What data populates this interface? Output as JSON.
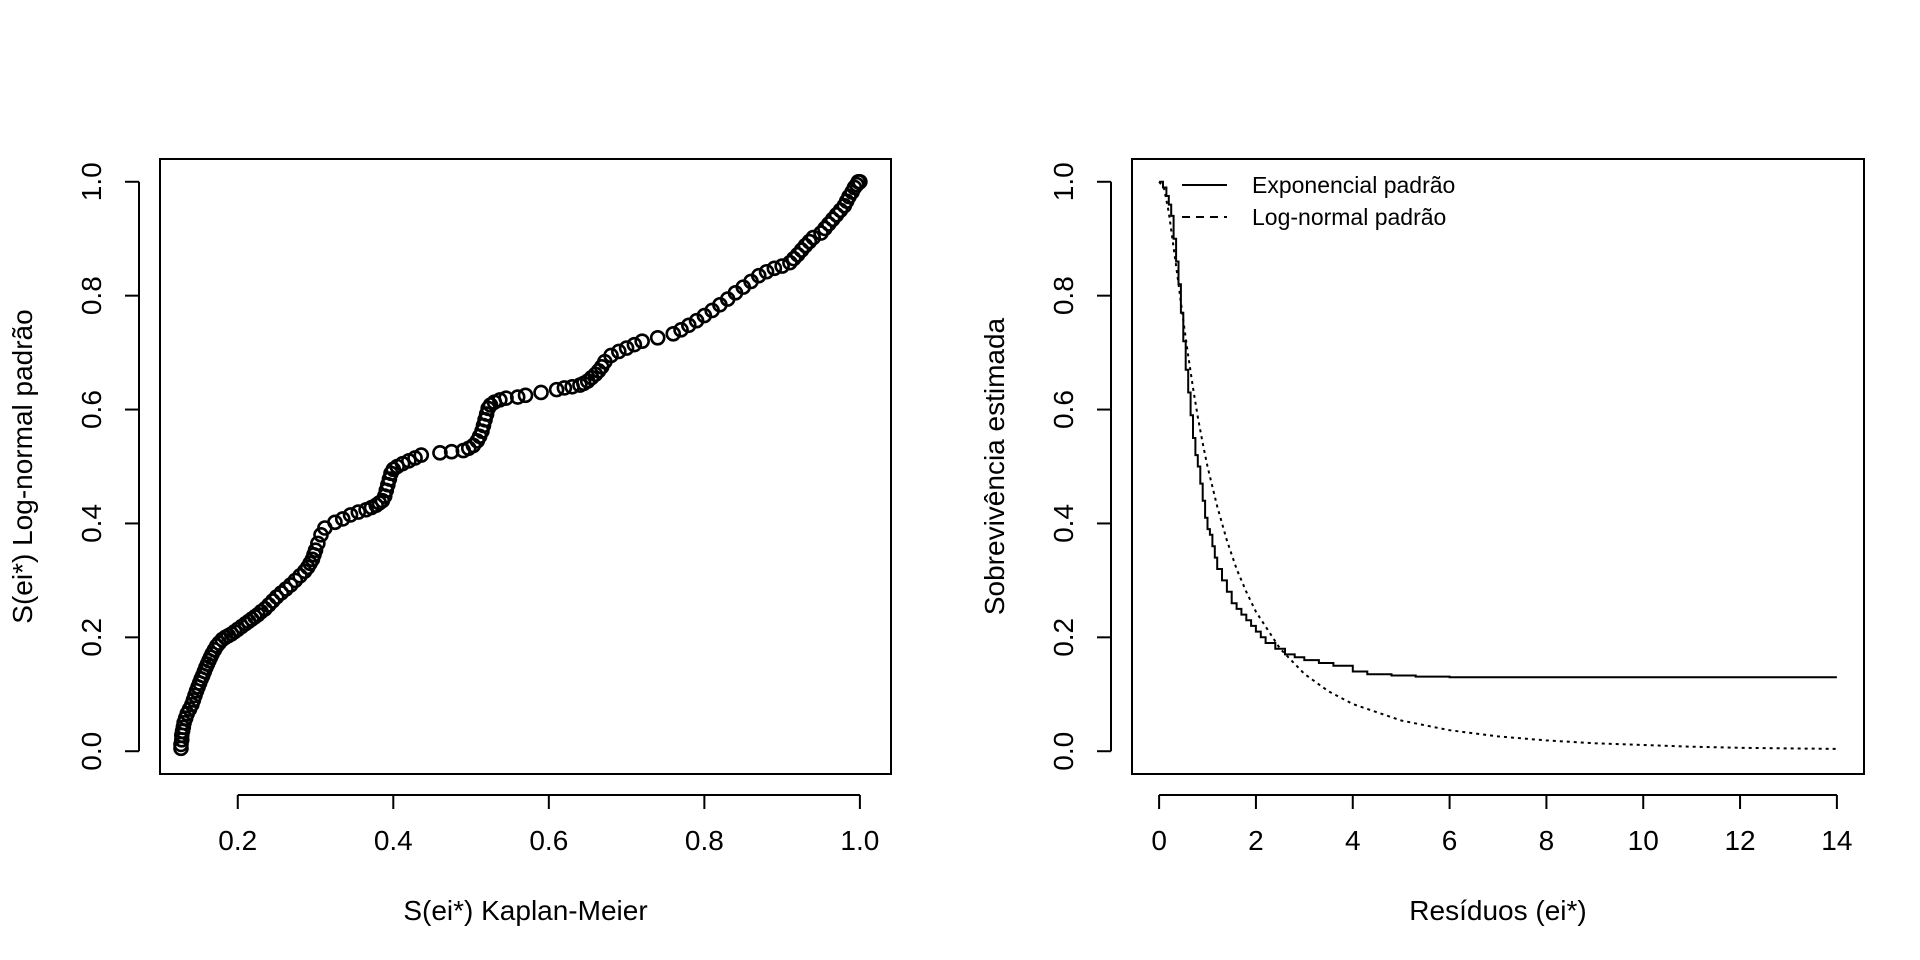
{
  "chart_data": [
    {
      "type": "scatter",
      "title": "",
      "xlabel": "S(ei*) Kaplan-Meier",
      "ylabel": "S(ei*) Log-normal padrão",
      "xlim": [
        0.1,
        1.04
      ],
      "ylim": [
        -0.04,
        1.04
      ],
      "xticks": [
        0.2,
        0.4,
        0.6,
        0.8,
        1.0
      ],
      "xtick_labels": [
        "0.2",
        "0.4",
        "0.6",
        "0.8",
        "1.0"
      ],
      "yticks": [
        0.0,
        0.2,
        0.4,
        0.6,
        0.8,
        1.0
      ],
      "ytick_labels": [
        "0.0",
        "0.2",
        "0.4",
        "0.6",
        "0.8",
        "1.0"
      ],
      "grid": false,
      "marker": "open-circle",
      "series": [
        {
          "x": [
            0.127,
            0.127,
            0.128,
            0.128,
            0.129,
            0.13,
            0.131,
            0.133,
            0.135,
            0.138,
            0.141,
            0.143,
            0.145,
            0.147,
            0.149,
            0.151,
            0.153,
            0.155,
            0.157,
            0.159,
            0.161,
            0.163,
            0.165,
            0.167,
            0.17,
            0.173,
            0.176,
            0.18,
            0.184,
            0.188,
            0.192,
            0.196,
            0.2,
            0.205,
            0.21,
            0.214,
            0.218,
            0.222,
            0.226,
            0.23,
            0.235,
            0.24,
            0.245,
            0.25,
            0.256,
            0.262,
            0.268,
            0.274,
            0.28,
            0.286,
            0.29,
            0.293,
            0.296,
            0.298,
            0.3,
            0.303,
            0.307,
            0.312,
            0.325,
            0.335,
            0.345,
            0.355,
            0.365,
            0.372,
            0.378,
            0.382,
            0.386,
            0.389,
            0.391,
            0.393,
            0.395,
            0.397,
            0.4,
            0.405,
            0.412,
            0.42,
            0.428,
            0.436,
            0.46,
            0.475,
            0.49,
            0.497,
            0.503,
            0.508,
            0.511,
            0.514,
            0.516,
            0.518,
            0.52,
            0.522,
            0.525,
            0.53,
            0.537,
            0.545,
            0.56,
            0.57,
            0.59,
            0.61,
            0.62,
            0.63,
            0.64,
            0.645,
            0.65,
            0.655,
            0.66,
            0.664,
            0.668,
            0.672,
            0.68,
            0.69,
            0.7,
            0.71,
            0.72,
            0.74,
            0.76,
            0.77,
            0.78,
            0.79,
            0.8,
            0.81,
            0.82,
            0.83,
            0.84,
            0.85,
            0.86,
            0.87,
            0.88,
            0.89,
            0.9,
            0.91,
            0.915,
            0.92,
            0.925,
            0.93,
            0.935,
            0.94,
            0.95,
            0.955,
            0.96,
            0.965,
            0.97,
            0.975,
            0.98,
            0.983,
            0.986,
            0.99,
            0.993,
            0.996,
            0.998,
            1.0
          ],
          "y": [
            0.005,
            0.012,
            0.02,
            0.028,
            0.035,
            0.042,
            0.05,
            0.058,
            0.066,
            0.074,
            0.082,
            0.09,
            0.098,
            0.106,
            0.113,
            0.12,
            0.127,
            0.133,
            0.14,
            0.147,
            0.153,
            0.159,
            0.165,
            0.171,
            0.178,
            0.185,
            0.19,
            0.196,
            0.2,
            0.203,
            0.206,
            0.21,
            0.214,
            0.219,
            0.224,
            0.228,
            0.232,
            0.236,
            0.24,
            0.245,
            0.25,
            0.257,
            0.264,
            0.271,
            0.278,
            0.285,
            0.292,
            0.3,
            0.308,
            0.316,
            0.323,
            0.33,
            0.337,
            0.345,
            0.353,
            0.365,
            0.38,
            0.392,
            0.402,
            0.408,
            0.415,
            0.42,
            0.424,
            0.428,
            0.432,
            0.436,
            0.44,
            0.448,
            0.458,
            0.468,
            0.478,
            0.488,
            0.495,
            0.5,
            0.505,
            0.51,
            0.515,
            0.52,
            0.524,
            0.526,
            0.528,
            0.532,
            0.537,
            0.545,
            0.553,
            0.562,
            0.572,
            0.582,
            0.592,
            0.602,
            0.608,
            0.613,
            0.617,
            0.62,
            0.622,
            0.625,
            0.63,
            0.635,
            0.638,
            0.64,
            0.643,
            0.646,
            0.65,
            0.656,
            0.662,
            0.668,
            0.675,
            0.684,
            0.695,
            0.702,
            0.708,
            0.714,
            0.72,
            0.726,
            0.733,
            0.74,
            0.748,
            0.756,
            0.765,
            0.774,
            0.784,
            0.794,
            0.805,
            0.815,
            0.825,
            0.835,
            0.842,
            0.848,
            0.852,
            0.858,
            0.865,
            0.872,
            0.88,
            0.888,
            0.895,
            0.902,
            0.91,
            0.918,
            0.926,
            0.934,
            0.942,
            0.95,
            0.958,
            0.966,
            0.974,
            0.982,
            0.99,
            0.995,
            1.0,
            1.0
          ]
        }
      ]
    },
    {
      "type": "line",
      "title": "",
      "xlabel": "Resíduos (ei*)",
      "ylabel": "Sobrevivência estimada",
      "xlim": [
        -0.56,
        14.56
      ],
      "ylim": [
        -0.04,
        1.04
      ],
      "xticks": [
        0,
        2,
        4,
        6,
        8,
        10,
        12,
        14
      ],
      "xtick_labels": [
        "0",
        "2",
        "4",
        "6",
        "8",
        "10",
        "12",
        "14"
      ],
      "yticks": [
        0.0,
        0.2,
        0.4,
        0.6,
        0.8,
        1.0
      ],
      "ytick_labels": [
        "0.0",
        "0.2",
        "0.4",
        "0.6",
        "0.8",
        "1.0"
      ],
      "grid": false,
      "legend_position": "top-left",
      "legend": [
        "Exponencial padrão",
        "Log-normal padrão"
      ],
      "series": [
        {
          "name": "Exponencial padrão",
          "style": "solid",
          "x": [
            0.0,
            0.08,
            0.15,
            0.2,
            0.25,
            0.3,
            0.35,
            0.4,
            0.45,
            0.5,
            0.55,
            0.6,
            0.65,
            0.7,
            0.75,
            0.8,
            0.85,
            0.9,
            0.95,
            1.0,
            1.05,
            1.1,
            1.15,
            1.2,
            1.3,
            1.4,
            1.5,
            1.6,
            1.7,
            1.8,
            1.9,
            2.0,
            2.1,
            2.2,
            2.4,
            2.6,
            2.8,
            3.0,
            3.3,
            3.6,
            4.0,
            4.3,
            4.8,
            5.3,
            6.0,
            8.0,
            10.0,
            12.0,
            14.0
          ],
          "y": [
            1.0,
            0.99,
            0.975,
            0.96,
            0.94,
            0.9,
            0.86,
            0.82,
            0.77,
            0.72,
            0.67,
            0.63,
            0.59,
            0.55,
            0.52,
            0.5,
            0.47,
            0.44,
            0.41,
            0.39,
            0.38,
            0.36,
            0.34,
            0.32,
            0.3,
            0.28,
            0.26,
            0.25,
            0.24,
            0.23,
            0.22,
            0.21,
            0.2,
            0.19,
            0.18,
            0.17,
            0.165,
            0.16,
            0.155,
            0.15,
            0.14,
            0.135,
            0.133,
            0.131,
            0.13,
            0.13,
            0.13,
            0.13,
            0.13
          ]
        },
        {
          "name": "Log-normal padrão",
          "style": "dashed",
          "x": [
            0.0,
            0.1,
            0.2,
            0.3,
            0.4,
            0.5,
            0.6,
            0.7,
            0.8,
            0.9,
            1.0,
            1.2,
            1.4,
            1.6,
            1.8,
            2.0,
            2.5,
            3.0,
            3.5,
            4.0,
            5.0,
            6.0,
            7.0,
            8.0,
            9.0,
            10.0,
            11.0,
            12.0,
            13.0,
            14.0
          ],
          "y": [
            1.0,
            0.989,
            0.946,
            0.885,
            0.821,
            0.756,
            0.695,
            0.638,
            0.587,
            0.541,
            0.5,
            0.43,
            0.37,
            0.32,
            0.28,
            0.245,
            0.18,
            0.136,
            0.105,
            0.083,
            0.054,
            0.037,
            0.026,
            0.019,
            0.014,
            0.011,
            0.008,
            0.006,
            0.005,
            0.004
          ]
        }
      ]
    }
  ]
}
